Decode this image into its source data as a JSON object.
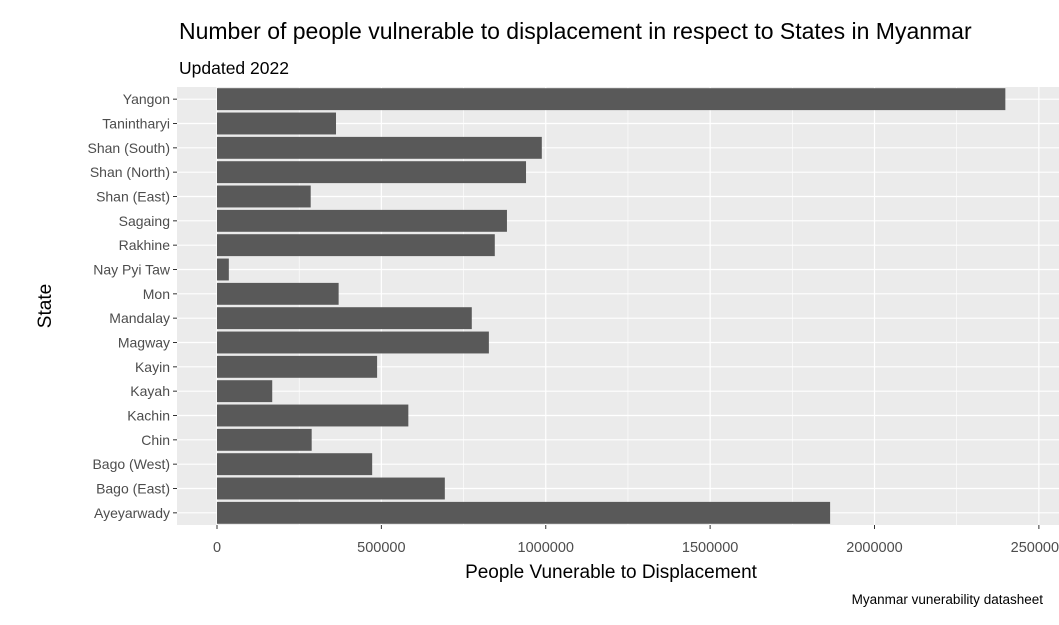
{
  "chart_data": {
    "type": "bar",
    "orientation": "horizontal",
    "title": "Number of people vulnerable to displacement in respect to States in Myanmar",
    "subtitle": "Updated 2022",
    "caption": "Myanmar vunerability datasheet",
    "xlabel": "People Vunerable to Displacement",
    "ylabel": "State",
    "xlim": [
      -120000,
      2520000
    ],
    "x_ticks": [
      0,
      500000,
      1000000,
      1500000,
      2000000,
      2500000
    ],
    "x_tick_labels": [
      "0",
      "500000",
      "1000000",
      "1500000",
      "2000000",
      "2500000"
    ],
    "grid": true,
    "bar_color": "#595959",
    "panel_color": "#ebebeb",
    "categories": [
      "Ayeyarwady",
      "Bago (East)",
      "Bago (West)",
      "Chin",
      "Kachin",
      "Kayah",
      "Kayin",
      "Magway",
      "Mandalay",
      "Mon",
      "Nay Pyi Taw",
      "Rakhine",
      "Sagaing",
      "Shan (East)",
      "Shan (North)",
      "Shan (South)",
      "Tanintharyi",
      "Yangon"
    ],
    "values": [
      1865000,
      693000,
      472000,
      288000,
      582000,
      168000,
      487000,
      827000,
      775000,
      370000,
      36000,
      845000,
      882000,
      285000,
      940000,
      988000,
      362000,
      2398000
    ]
  }
}
